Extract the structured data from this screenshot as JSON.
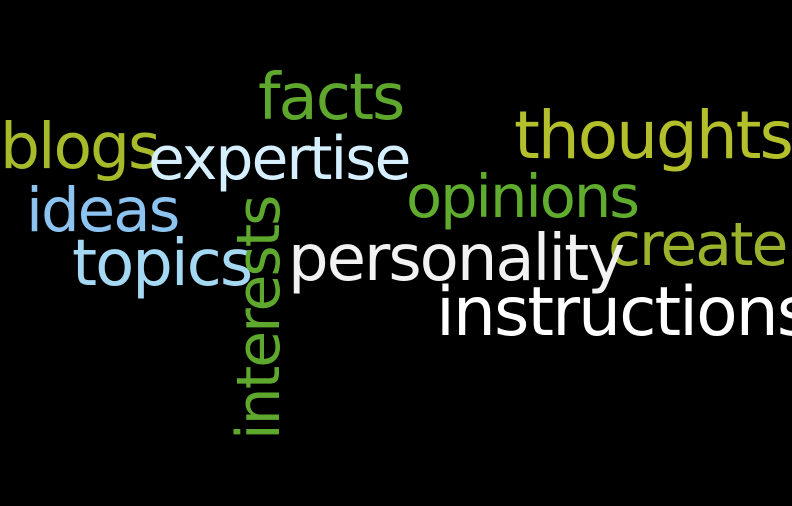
{
  "words": {
    "facts": "facts",
    "blogs": "blogs",
    "expertise": "expertise",
    "thoughts": "thoughts",
    "opinions": "opinions",
    "ideas": "ideas",
    "create": "create",
    "topics": "topics",
    "personality": "personality",
    "instructions": "instructions",
    "interests": "interests"
  },
  "colors": {
    "background": "#000000",
    "green": "#5fa82e",
    "olive": "#a6ba2a",
    "light_blue": "#8cc3f0",
    "pale_blue": "#d6efff",
    "white": "#ffffff"
  }
}
